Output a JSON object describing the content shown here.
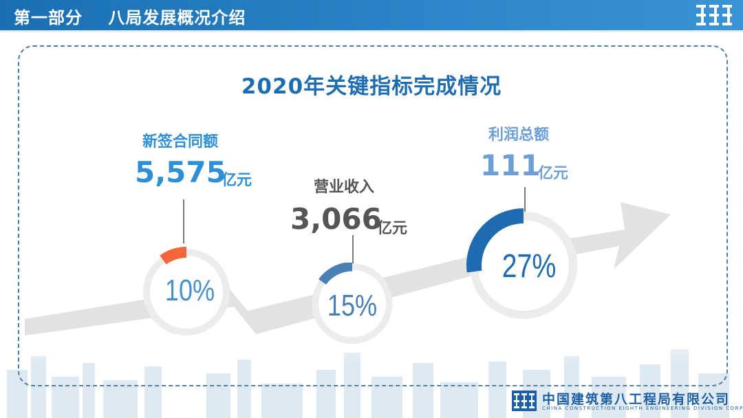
{
  "header": {
    "section": "第一部分",
    "title": "八局发展概况介绍"
  },
  "main_title": "2020年关键指标完成情况",
  "kpis": [
    {
      "label": "新签合同额",
      "value": "5,575",
      "unit": "亿元",
      "percent": "10%",
      "progress": 0.1,
      "color": "#f5673a"
    },
    {
      "label": "营业收入",
      "value": "3,066",
      "unit": "亿元",
      "percent": "15%",
      "progress": 0.15,
      "color": "#4a7fb5"
    },
    {
      "label": "利润总额",
      "value": "111",
      "unit": "亿元",
      "percent": "27%",
      "progress": 0.27,
      "color": "#1f6bb0"
    }
  ],
  "colors": {
    "brand_blue": "#1e6db0",
    "label_blue": "#2d8fd6",
    "label_gray": "#555555",
    "label_light_blue": "#6d9fd6",
    "track": "#ececec",
    "arrow": "#e2e2e2"
  },
  "footer": {
    "company_cn": "中国建筑第八工程局有限公司",
    "company_en": "CHINA CONSTRUCTION EIGHTH ENGINEERING DIVISION CORP., LTD"
  }
}
